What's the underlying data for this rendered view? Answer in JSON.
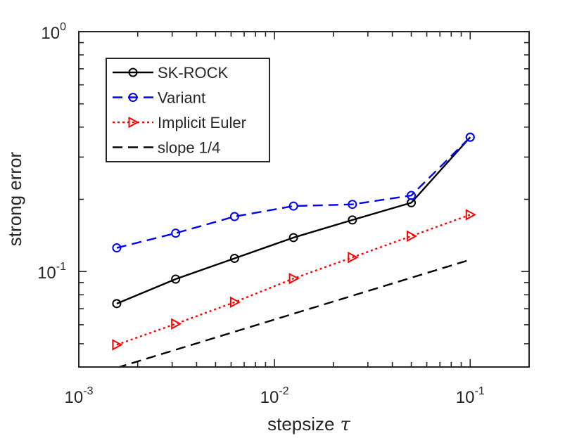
{
  "chart_data": {
    "type": "line",
    "xlabel": "stepsize",
    "xlabel_symbol": "τ",
    "ylabel": "strong error",
    "xscale": "log",
    "yscale": "log",
    "xlim": [
      0.001,
      0.2
    ],
    "ylim": [
      0.04,
      1
    ],
    "grid": false,
    "legend_position": "top-left",
    "x_ticks": [
      {
        "base": "10",
        "exp": "-3",
        "value": 0.001
      },
      {
        "base": "10",
        "exp": "-2",
        "value": 0.01
      },
      {
        "base": "10",
        "exp": "-1",
        "value": 0.1
      }
    ],
    "y_ticks": [
      {
        "base": "10",
        "exp": "-1",
        "value": 0.1
      },
      {
        "base": "10",
        "exp": "0",
        "value": 1
      }
    ],
    "series": [
      {
        "name": "SK-ROCK",
        "color": "#000000",
        "line": "solid",
        "marker": "circle",
        "x": [
          0.0015625,
          0.003125,
          0.00625,
          0.0125,
          0.025,
          0.05,
          0.1
        ],
        "y": [
          0.0735,
          0.093,
          0.1135,
          0.1385,
          0.164,
          0.1935,
          0.363
        ]
      },
      {
        "name": "Variant",
        "color": "#0000ff",
        "line": "dashed",
        "marker": "circle",
        "x": [
          0.0015625,
          0.003125,
          0.00625,
          0.0125,
          0.025,
          0.05,
          0.1
        ],
        "y": [
          0.1255,
          0.1445,
          0.1695,
          0.1875,
          0.1905,
          0.2075,
          0.363
        ]
      },
      {
        "name": "Implicit Euler",
        "color": "#ff0000",
        "line": "dotted",
        "marker": "triangle-right",
        "x": [
          0.0015625,
          0.003125,
          0.00625,
          0.0125,
          0.025,
          0.05,
          0.1
        ],
        "y": [
          0.0495,
          0.0605,
          0.0745,
          0.0935,
          0.1145,
          0.1405,
          0.1725
        ]
      },
      {
        "name": "slope 1/4",
        "color": "#000000",
        "line": "dashed",
        "marker": "none",
        "x": [
          0.0015625,
          0.1
        ],
        "y": [
          0.0397,
          0.112
        ]
      }
    ]
  }
}
